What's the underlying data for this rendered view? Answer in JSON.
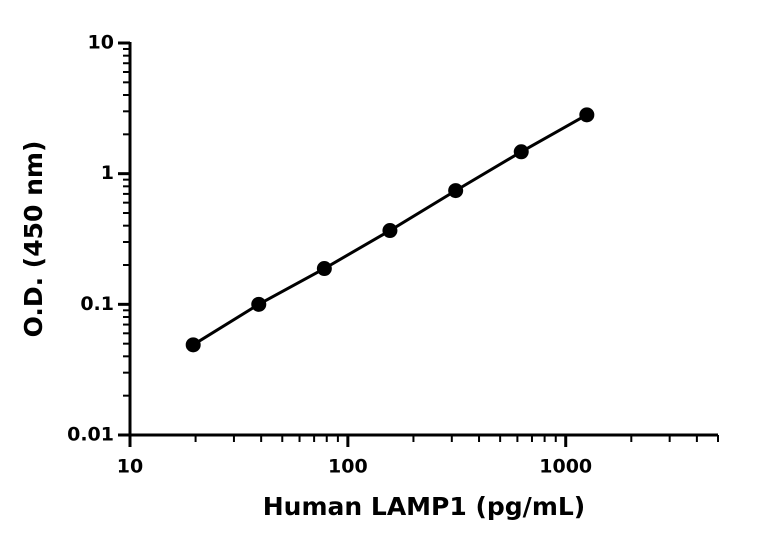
{
  "chart_data": {
    "type": "line",
    "markers": true,
    "x_label": "Human LAMP1 (pg/mL)",
    "y_label": "O.D. (450 nm)",
    "x": [
      19.5,
      39,
      78,
      156,
      312.5,
      625,
      1250
    ],
    "values": [
      0.049,
      0.1,
      0.188,
      0.367,
      0.742,
      1.47,
      2.82
    ],
    "color": "#000000",
    "xlog": true,
    "ylog": true,
    "minor_ticks": true,
    "xlim": [
      10,
      5000
    ],
    "xticks": [
      10,
      100,
      1000
    ],
    "ylim": [
      0.01,
      10
    ],
    "yticks": [
      0.01,
      0.1,
      1,
      10
    ]
  }
}
